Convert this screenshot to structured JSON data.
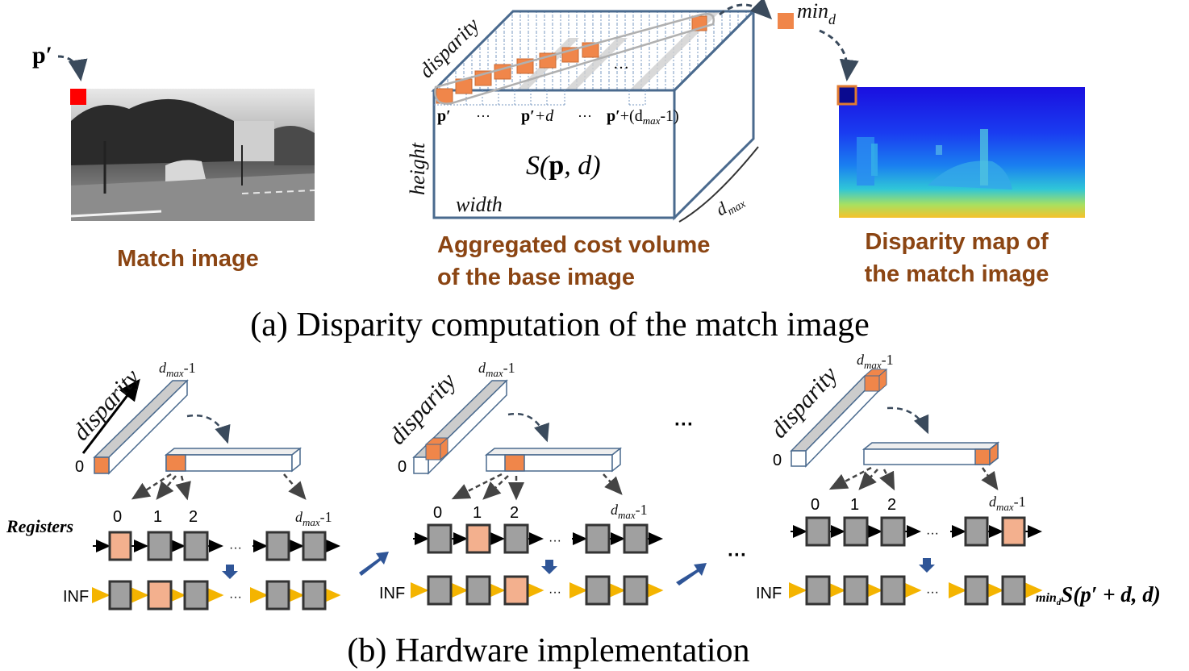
{
  "panel_a": {
    "p_prime_label": "p′",
    "match_image_label": "Match image",
    "cost_volume_label_line1": "Aggregated cost volume",
    "cost_volume_label_line2": "of the base image",
    "disparity_map_label_line1": "Disparity map of",
    "disparity_map_label_line2": "the match image",
    "axis_disparity": "disparity",
    "axis_height": "height",
    "axis_width": "width",
    "axis_dmax": "d",
    "axis_dmax_sub": "max",
    "ellipsis": "…",
    "bottom_labels": {
      "p0": "p′",
      "dots1": "···",
      "pd_bold": "p′",
      "pd_rest": "+d",
      "dots2": "···",
      "pmax_bold": "p′",
      "pmax_rest_a": "+(d",
      "pmax_sub": "max",
      "pmax_rest_b": "-1)"
    },
    "cost_formula_s": "S(",
    "cost_formula_p": "p",
    "cost_formula_rest": ", d)",
    "min_label": "min",
    "min_sub": "d",
    "caption": "(a) Disparity computation of the match image",
    "colors": {
      "orange": "#F0864A",
      "volume_edge": "#4A6A8E",
      "red_pixel": "#FF0000",
      "brown_text": "#8B4513",
      "disp_low": "#2D1FE6",
      "disp_high": "#F6C12A"
    }
  },
  "panel_b": {
    "disparity_label": "disparity",
    "zero_label": "0",
    "dmax_label": "d",
    "dmax_sub": "max",
    "dmax_suffix": "-1",
    "registers_label": "Registers",
    "inf_label": "INF",
    "reg_idx": [
      "0",
      "1",
      "2"
    ],
    "ellipsis": "···",
    "big_ellipsis": "···",
    "output_min": "min",
    "output_sub": "d",
    "output_expr": "S(p′ + d, d)",
    "caption": "(b) Hardware implementation",
    "colors": {
      "register_gray": "#A0A0A0",
      "register_orange": "#F3B08E",
      "cell_orange": "#F0864A",
      "arrow_blue": "#2F5597",
      "arrow_yellow": "#F4B400",
      "dash_gray": "#444444"
    }
  }
}
